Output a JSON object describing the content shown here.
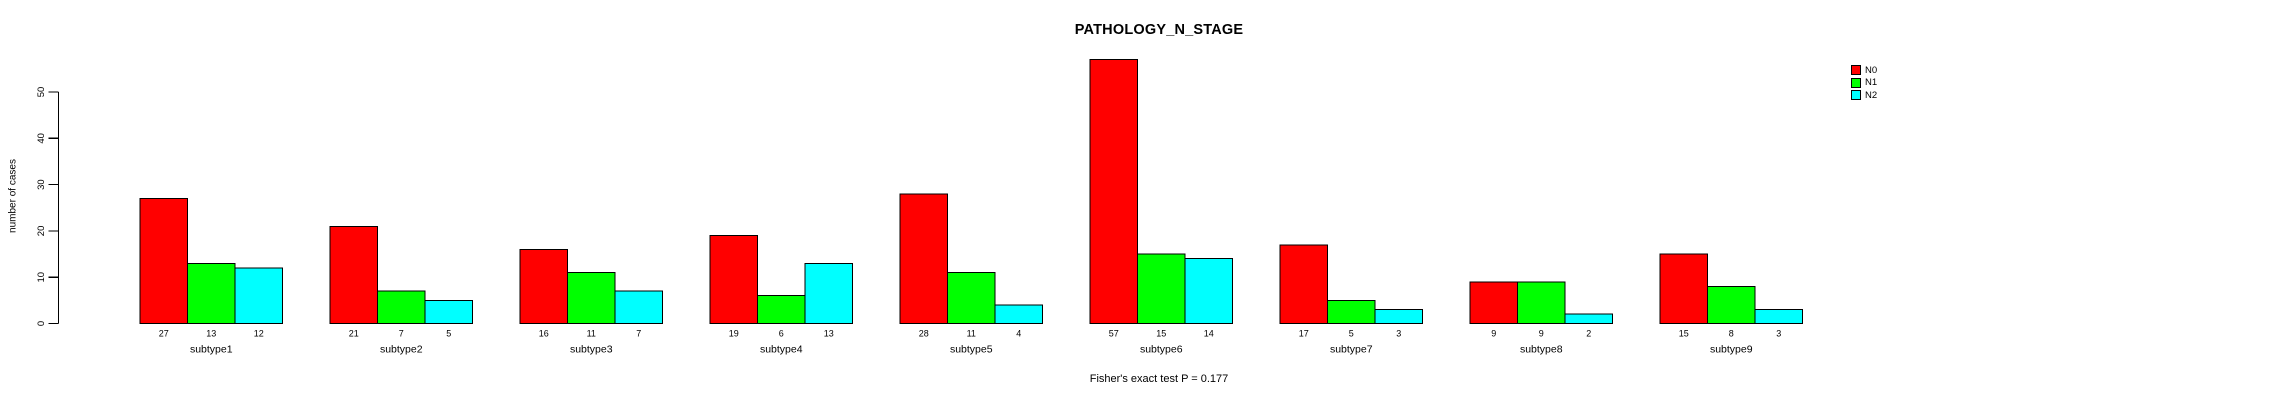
{
  "chart_data": {
    "type": "bar",
    "title": "PATHOLOGY_N_STAGE",
    "xlabel": "",
    "ylabel": "number of cases",
    "ylim": [
      0,
      50
    ],
    "yticks": [
      0,
      10,
      20,
      30,
      40,
      50
    ],
    "grid": false,
    "legend_position": "top-right",
    "categories": [
      "subtype1",
      "subtype2",
      "subtype3",
      "subtype4",
      "subtype5",
      "subtype6",
      "subtype7",
      "subtype8",
      "subtype9"
    ],
    "series": [
      {
        "name": "N0",
        "color": "#ff0000",
        "values": [
          27,
          21,
          16,
          19,
          28,
          57,
          17,
          9,
          15
        ]
      },
      {
        "name": "N1",
        "color": "#00ff00",
        "values": [
          13,
          7,
          11,
          6,
          11,
          15,
          5,
          9,
          8
        ]
      },
      {
        "name": "N2",
        "color": "#00ffff",
        "values": [
          12,
          5,
          7,
          13,
          4,
          14,
          3,
          2,
          3
        ]
      }
    ],
    "bar_border_color": "#000000",
    "axis_color": "#000000",
    "value_labels_shown": true,
    "annotation": "Fisher's exact test P = 0.177"
  }
}
